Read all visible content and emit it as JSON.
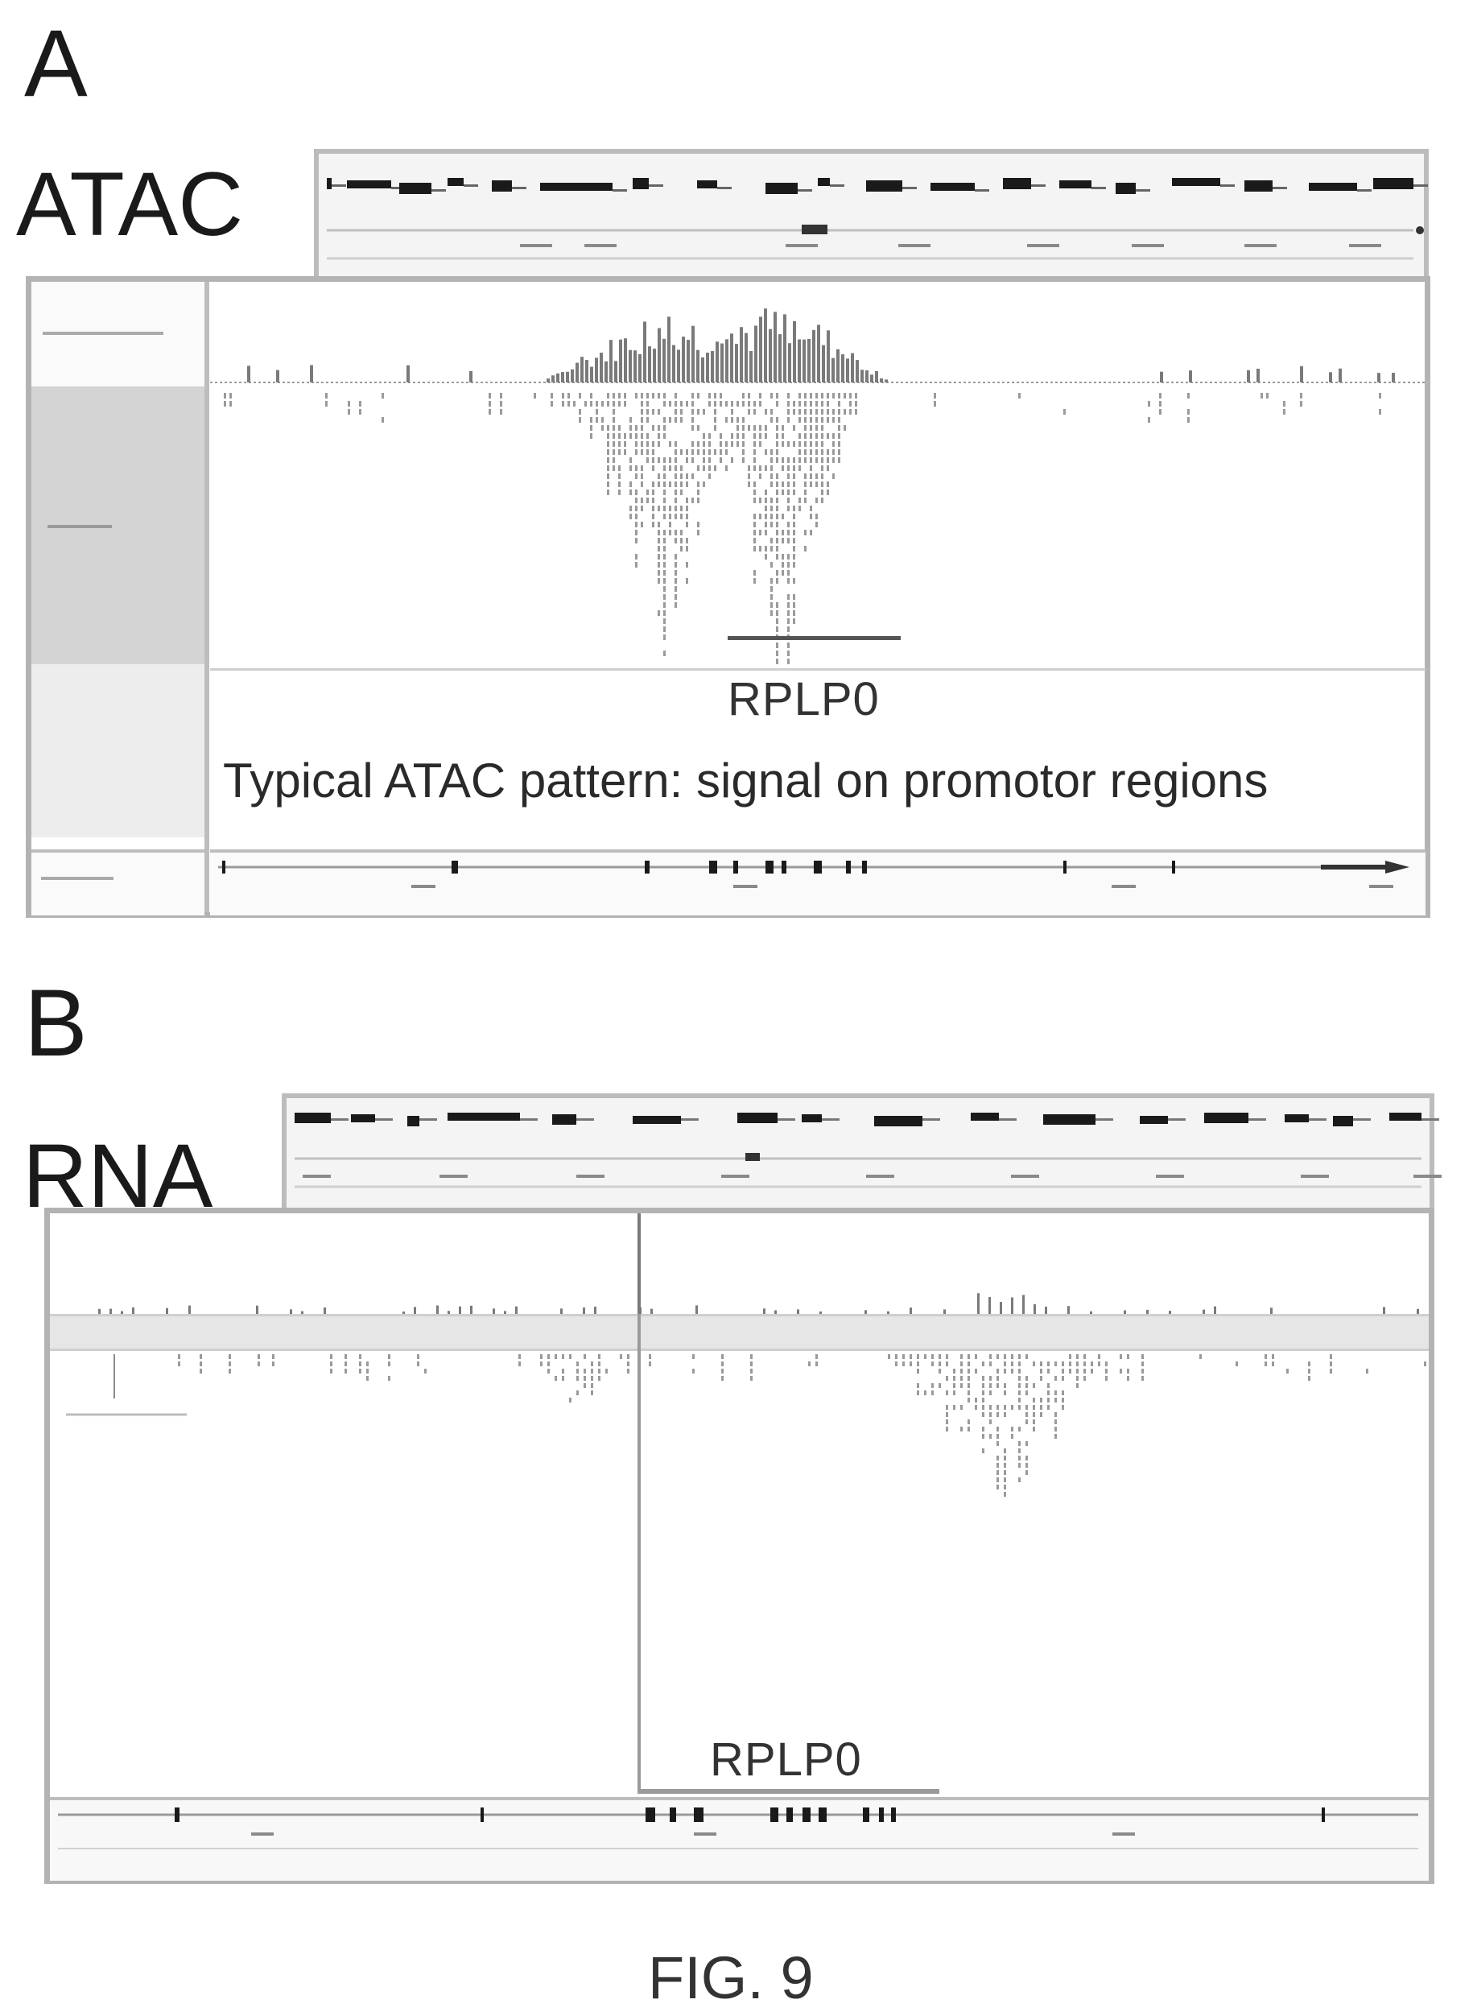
{
  "panels": [
    {
      "letter": "A",
      "assay": "ATAC",
      "gene": "RPLP0",
      "annotation": "Typical ATAC  pattern: signal on promotor regions"
    },
    {
      "letter": "B",
      "assay": "RNA",
      "gene": "RPLP0"
    }
  ],
  "caption": "FIG. 9",
  "colors": {
    "frame": "#b3b3b3",
    "signal": "#8a8a8a",
    "gene_block": "#1a1a1a",
    "ruler_bg": "#f4f4f4"
  }
}
